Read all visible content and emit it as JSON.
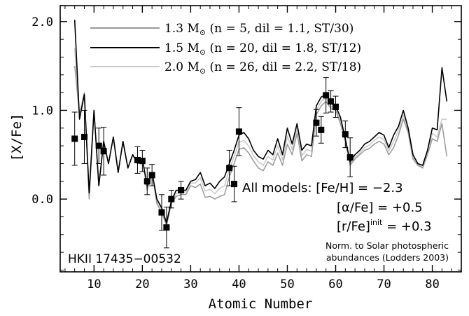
{
  "chart_data": {
    "type": "line",
    "xlabel": "Atomic Number",
    "ylabel": "[X/Fe]",
    "xlim": [
      3,
      86
    ],
    "ylim": [
      -0.82,
      2.18
    ],
    "xticks": [
      10,
      20,
      30,
      40,
      50,
      60,
      70,
      80
    ],
    "yticks": [
      0,
      1,
      2
    ],
    "yticklabels": [
      "0.0",
      "1.0",
      "2.0"
    ],
    "grid": false,
    "legend_position": "top",
    "series": [
      {
        "name": "1.3 M⊙ (n =  5, dil = 1.1, ST/30)",
        "mass": "1.3 M",
        "detail": "(n =  5, dil = 1.1, ST/30)",
        "color": "#999999",
        "x": [
          6,
          7,
          8,
          9,
          10,
          11,
          12,
          13,
          14,
          15,
          16,
          17,
          18,
          19,
          20,
          21,
          22,
          23,
          24,
          25,
          26,
          27,
          28,
          29,
          30,
          31,
          32,
          33,
          34,
          35,
          36,
          37,
          38,
          39,
          40,
          41,
          42,
          43,
          44,
          45,
          46,
          47,
          48,
          49,
          50,
          51,
          52,
          53,
          54,
          55,
          56,
          57,
          58,
          59,
          60,
          61,
          62,
          63,
          64,
          65,
          66,
          67,
          68,
          69,
          70,
          71,
          72,
          73,
          74,
          75,
          76,
          77,
          78,
          79,
          80,
          81,
          82,
          83
        ],
        "y": [
          1.5,
          0.95,
          1.2,
          0.0,
          1.0,
          0.15,
          0.65,
          0.4,
          0.7,
          0.3,
          0.65,
          0.35,
          0.5,
          0.4,
          0.45,
          0.1,
          0.3,
          -0.05,
          -0.15,
          -0.3,
          -0.05,
          0.03,
          0.05,
          0.05,
          0.15,
          0.13,
          0.17,
          0.02,
          0.03,
          0.0,
          0.03,
          0.05,
          0.25,
          0.4,
          0.56,
          0.58,
          0.52,
          0.43,
          0.35,
          0.32,
          0.42,
          0.38,
          0.52,
          0.38,
          0.62,
          0.5,
          0.74,
          0.43,
          0.5,
          0.48,
          0.95,
          1.05,
          1.1,
          1.02,
          1.0,
          0.85,
          0.65,
          0.38,
          0.45,
          0.5,
          0.55,
          0.57,
          0.62,
          0.65,
          0.62,
          0.5,
          0.58,
          0.72,
          0.9,
          0.75,
          0.45,
          0.38,
          0.35,
          0.5,
          0.68,
          0.65,
          0.85,
          0.48
        ]
      },
      {
        "name": "1.5 M⊙ (n = 20, dil = 1.8, ST/12)",
        "mass": "1.5 M",
        "detail": "(n = 20, dil = 1.8, ST/12)",
        "color": "#000000",
        "x": [
          6,
          7,
          8,
          9,
          10,
          11,
          12,
          13,
          14,
          15,
          16,
          17,
          18,
          19,
          20,
          21,
          22,
          23,
          24,
          25,
          26,
          27,
          28,
          29,
          30,
          31,
          32,
          33,
          34,
          35,
          36,
          37,
          38,
          39,
          40,
          41,
          42,
          43,
          44,
          45,
          46,
          47,
          48,
          49,
          50,
          51,
          52,
          53,
          54,
          55,
          56,
          57,
          58,
          59,
          60,
          61,
          62,
          63,
          64,
          65,
          66,
          67,
          68,
          69,
          70,
          71,
          72,
          73,
          74,
          75,
          76,
          77,
          78,
          79,
          80,
          81,
          82,
          83
        ],
        "y": [
          2.02,
          0.9,
          1.18,
          0.07,
          1.0,
          0.15,
          0.65,
          0.4,
          0.7,
          0.3,
          0.65,
          0.35,
          0.5,
          0.4,
          0.45,
          0.15,
          0.3,
          0.0,
          -0.1,
          -0.27,
          -0.02,
          0.1,
          0.1,
          0.1,
          0.2,
          0.22,
          0.3,
          0.15,
          0.18,
          0.12,
          0.2,
          0.25,
          0.4,
          0.55,
          0.72,
          0.75,
          0.68,
          0.55,
          0.48,
          0.45,
          0.55,
          0.5,
          0.68,
          0.5,
          0.8,
          0.62,
          0.85,
          0.55,
          0.62,
          0.6,
          1.05,
          1.15,
          1.18,
          1.08,
          1.05,
          0.92,
          0.68,
          0.42,
          0.5,
          0.55,
          0.62,
          0.65,
          0.7,
          0.75,
          0.72,
          0.58,
          0.72,
          0.82,
          1.0,
          0.8,
          0.5,
          0.4,
          0.38,
          0.55,
          0.8,
          0.78,
          1.48,
          1.1
        ]
      },
      {
        "name": "2.0 M⊙ (n = 26, dil = 2.2, ST/18)",
        "mass": "2.0 M",
        "detail": "(n = 26, dil = 2.2, ST/18)",
        "color": "#c8c8c8",
        "x": [
          6,
          7,
          8,
          9,
          10,
          11,
          12,
          13,
          14,
          15,
          16,
          17,
          18,
          19,
          20,
          21,
          22,
          23,
          24,
          25,
          26,
          27,
          28,
          29,
          30,
          31,
          32,
          33,
          34,
          35,
          36,
          37,
          38,
          39,
          40,
          41,
          42,
          43,
          44,
          45,
          46,
          47,
          48,
          49,
          50,
          51,
          52,
          53,
          54,
          55,
          56,
          57,
          58,
          59,
          60,
          61,
          62,
          63,
          64,
          65,
          66,
          67,
          68,
          69,
          70,
          71,
          72,
          73,
          74,
          75,
          76,
          77,
          78,
          79,
          80,
          81,
          82,
          83
        ],
        "y": [
          1.7,
          0.92,
          1.17,
          0.03,
          1.0,
          0.15,
          0.65,
          0.4,
          0.7,
          0.3,
          0.65,
          0.35,
          0.5,
          0.4,
          0.45,
          0.12,
          0.3,
          -0.02,
          -0.12,
          -0.28,
          -0.03,
          0.06,
          0.08,
          0.08,
          0.18,
          0.18,
          0.24,
          0.09,
          0.11,
          0.06,
          0.12,
          0.15,
          0.33,
          0.48,
          0.64,
          0.66,
          0.6,
          0.49,
          0.42,
          0.38,
          0.48,
          0.44,
          0.6,
          0.44,
          0.71,
          0.56,
          0.8,
          0.49,
          0.56,
          0.54,
          1.0,
          1.1,
          1.14,
          1.05,
          1.02,
          0.88,
          0.66,
          0.4,
          0.47,
          0.52,
          0.58,
          0.61,
          0.66,
          0.7,
          0.67,
          0.54,
          0.65,
          0.77,
          0.95,
          0.77,
          0.47,
          0.39,
          0.36,
          0.52,
          0.74,
          0.7,
          0.9,
          0.9
        ]
      }
    ],
    "observations": {
      "name": "HKII 17435-00532",
      "points": [
        {
          "x": 6,
          "y": 0.68,
          "err": 0.3
        },
        {
          "x": 8,
          "y": 0.7,
          "err": 0.3
        },
        {
          "x": 11,
          "y": 0.6,
          "err": 0.2
        },
        {
          "x": 12,
          "y": 0.54,
          "err": 0.27
        },
        {
          "x": 19,
          "y": 0.44,
          "err": 0.15
        },
        {
          "x": 20,
          "y": 0.43,
          "err": 0.12
        },
        {
          "x": 21,
          "y": 0.2,
          "err": 0.15
        },
        {
          "x": 22,
          "y": 0.27,
          "err": 0.12
        },
        {
          "x": 24,
          "y": -0.15,
          "err": 0.2
        },
        {
          "x": 25,
          "y": -0.32,
          "err": 0.23
        },
        {
          "x": 26,
          "y": 0.0,
          "err": 0.1
        },
        {
          "x": 28,
          "y": 0.1,
          "err": 0.1
        },
        {
          "x": 38,
          "y": 0.35,
          "err": 0.2
        },
        {
          "x": 39,
          "y": 0.17,
          "err": 0.2
        },
        {
          "x": 40,
          "y": 0.76,
          "err": 0.27
        },
        {
          "x": 56,
          "y": 0.86,
          "err": 0.15
        },
        {
          "x": 57,
          "y": 0.78,
          "err": 0.15
        },
        {
          "x": 58,
          "y": 1.17,
          "err": 0.2
        },
        {
          "x": 59,
          "y": 1.1,
          "err": 0.12
        },
        {
          "x": 60,
          "y": 1.04,
          "err": 0.12
        },
        {
          "x": 62,
          "y": 0.73,
          "err": 0.15
        },
        {
          "x": 63,
          "y": 0.47,
          "err": 0.22
        }
      ]
    },
    "annotations": {
      "star_name": "HKII 17435−00532",
      "all_models": "All models: [Fe/H] = −2.3",
      "alpha_fe": "[α/Fe] = +0.5",
      "r_fe_main": "[r/Fe]",
      "r_fe_sup": "init",
      "r_fe_value": " = +0.3",
      "norm_line1": "Norm. to Solar photospheric",
      "norm_line2": "abundances (Lodders 2003)"
    }
  }
}
